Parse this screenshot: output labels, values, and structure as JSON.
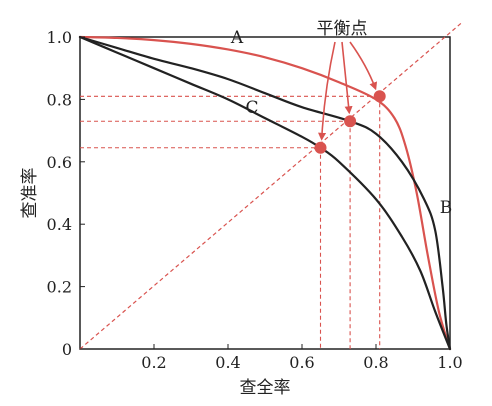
{
  "chart_data": {
    "type": "line",
    "xlabel": "查全率",
    "ylabel": "查准率",
    "xlim": [
      0,
      1
    ],
    "ylim": [
      0,
      1
    ],
    "x_ticks": [
      "0.2",
      "0.4",
      "0.6",
      "0.8",
      "1.0"
    ],
    "y_ticks": [
      "0",
      "0.2",
      "0.4",
      "0.6",
      "0.8",
      "1.0"
    ],
    "grid": false,
    "series": [
      {
        "name": "A",
        "color": "#d9534f",
        "points": [
          [
            0,
            1.0
          ],
          [
            0.1,
            0.997
          ],
          [
            0.2,
            0.99
          ],
          [
            0.3,
            0.978
          ],
          [
            0.4,
            0.96
          ],
          [
            0.5,
            0.935
          ],
          [
            0.6,
            0.9
          ],
          [
            0.7,
            0.855
          ],
          [
            0.8,
            0.8
          ],
          [
            0.85,
            0.74
          ],
          [
            0.88,
            0.65
          ],
          [
            0.91,
            0.5
          ],
          [
            0.94,
            0.3
          ],
          [
            0.97,
            0.12
          ],
          [
            1.0,
            0.0
          ]
        ]
      },
      {
        "name": "B",
        "color": "#222222",
        "points": [
          [
            0,
            1.0
          ],
          [
            0.1,
            0.965
          ],
          [
            0.2,
            0.93
          ],
          [
            0.3,
            0.9
          ],
          [
            0.4,
            0.865
          ],
          [
            0.5,
            0.82
          ],
          [
            0.6,
            0.775
          ],
          [
            0.73,
            0.73
          ],
          [
            0.8,
            0.69
          ],
          [
            0.87,
            0.6
          ],
          [
            0.93,
            0.48
          ],
          [
            0.96,
            0.38
          ],
          [
            0.98,
            0.2
          ],
          [
            0.99,
            0.08
          ],
          [
            1.0,
            0.0
          ]
        ]
      },
      {
        "name": "C",
        "color": "#222222",
        "points": [
          [
            0,
            1.0
          ],
          [
            0.1,
            0.95
          ],
          [
            0.2,
            0.9
          ],
          [
            0.3,
            0.85
          ],
          [
            0.4,
            0.8
          ],
          [
            0.5,
            0.74
          ],
          [
            0.6,
            0.68
          ],
          [
            0.65,
            0.645
          ],
          [
            0.7,
            0.6
          ],
          [
            0.8,
            0.48
          ],
          [
            0.87,
            0.36
          ],
          [
            0.92,
            0.25
          ],
          [
            0.96,
            0.12
          ],
          [
            1.0,
            0.0
          ]
        ]
      }
    ],
    "diagonal": {
      "color": "#d9534f",
      "style": "dashed"
    },
    "break_even_points": [
      {
        "x": 0.65,
        "y": 0.645
      },
      {
        "x": 0.73,
        "y": 0.73
      },
      {
        "x": 0.81,
        "y": 0.81
      }
    ],
    "annotation": "平衡点",
    "marker_color": "#d9534f"
  }
}
